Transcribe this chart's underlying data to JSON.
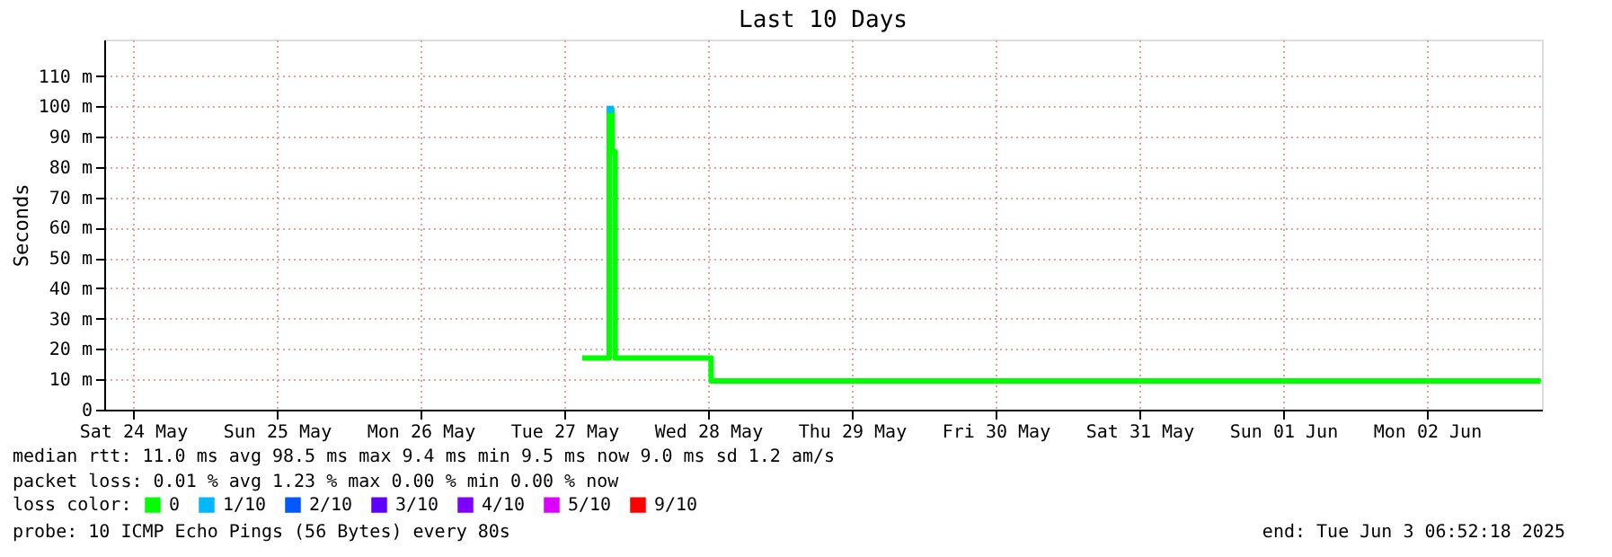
{
  "chart_data": {
    "type": "step",
    "title": "Last 10 Days",
    "ylabel": "Seconds",
    "legend_title": "loss color:",
    "x": [
      "2025-05-27T15:00",
      "2025-05-27T19:30",
      "2025-05-27T20:00",
      "2025-05-27T20:30",
      "2025-05-28T12:30",
      "2025-06-03T07:00"
    ],
    "series": [
      {
        "name": "0",
        "color": "#00ff00",
        "values": [
          17,
          99,
          85,
          17,
          9.5,
          9.5
        ]
      },
      {
        "name": "1/10",
        "color": "#00b8ff",
        "type": "scatter",
        "x": [
          "2025-05-27T19:40"
        ],
        "values": [
          99
        ]
      },
      {
        "name": "2/10",
        "color": "#0059ff",
        "type": "scatter",
        "values": [
          null,
          null,
          null,
          null,
          null,
          null
        ]
      },
      {
        "name": "3/10",
        "color": "#5e00ff",
        "type": "scatter",
        "values": [
          null,
          null,
          null,
          null,
          null,
          null
        ]
      },
      {
        "name": "4/10",
        "color": "#7e00ff",
        "type": "scatter",
        "values": [
          null,
          null,
          null,
          null,
          null,
          null
        ]
      },
      {
        "name": "5/10",
        "color": "#dd00ff",
        "type": "scatter",
        "values": [
          null,
          null,
          null,
          null,
          null,
          null
        ]
      },
      {
        "name": "9/10",
        "color": "#ff0000",
        "type": "scatter",
        "values": [
          null,
          null,
          null,
          null,
          null,
          null
        ]
      }
    ],
    "xlim": [
      "2025-05-24T07:12",
      "2025-06-03T07:12"
    ],
    "xticks": [
      {
        "value": "2025-05-24T12:00",
        "label": "Sat 24 May"
      },
      {
        "value": "2025-05-25T12:00",
        "label": "Sun 25 May"
      },
      {
        "value": "2025-05-26T12:00",
        "label": "Mon 26 May"
      },
      {
        "value": "2025-05-27T12:00",
        "label": "Tue 27 May"
      },
      {
        "value": "2025-05-28T12:00",
        "label": "Wed 28 May"
      },
      {
        "value": "2025-05-29T12:00",
        "label": "Thu 29 May"
      },
      {
        "value": "2025-05-30T12:00",
        "label": "Fri 30 May"
      },
      {
        "value": "2025-05-31T12:00",
        "label": "Sat 31 May"
      },
      {
        "value": "2025-06-01T12:00",
        "label": "Sun 01 Jun"
      },
      {
        "value": "2025-06-02T12:00",
        "label": "Mon 02 Jun"
      }
    ],
    "ylim": [
      0,
      122
    ],
    "yticks": [
      0,
      {
        "value": 10,
        "label": "10 m"
      },
      {
        "value": 20,
        "label": "20 m"
      },
      {
        "value": 30,
        "label": "30 m"
      },
      {
        "value": 40,
        "label": "40 m"
      },
      {
        "value": 50,
        "label": "50 m"
      },
      {
        "value": 60,
        "label": "60 m"
      },
      {
        "value": 70,
        "label": "70 m"
      },
      {
        "value": 80,
        "label": "80 m"
      },
      {
        "value": 90,
        "label": "90 m"
      },
      {
        "value": 100,
        "label": "100 m"
      },
      {
        "value": 110,
        "label": "110 m"
      }
    ],
    "grid": true,
    "legend": "bottom left",
    "annotations": [
      "median rtt:  11.0 ms avg  98.5 ms max  9.4 ms min  9.5 ms now  9.0 ms sd  1.2   am/s",
      "packet loss: 0.01 % avg  1.23 % max  0.00 % min  0.00 % now",
      "probe:       10 ICMP Echo Pings (56 Bytes) every 80s",
      "end: Tue Jun  3 06:52:18 2025"
    ]
  }
}
